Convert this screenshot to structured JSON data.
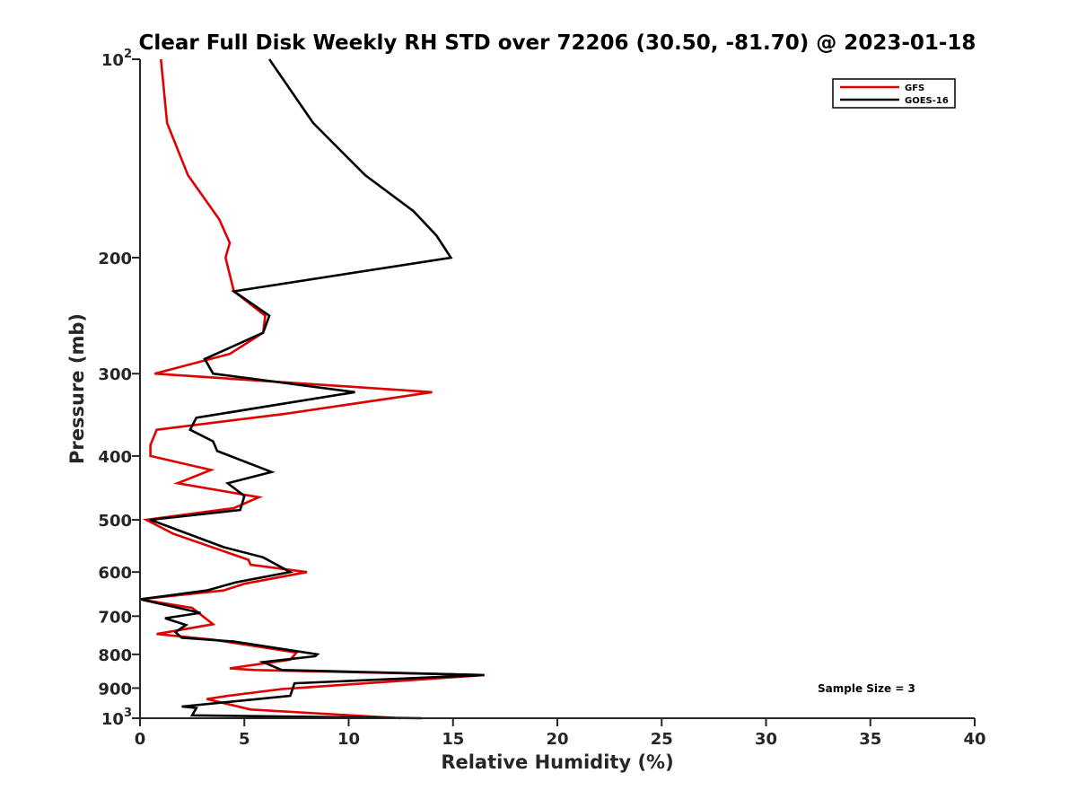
{
  "chart_data": {
    "type": "line",
    "title": "Clear Full Disk Weekly RH STD over 72206 (30.50, -81.70) @ 2023-01-18",
    "xlabel": "Relative Humidity (%)",
    "ylabel": "Pressure (mb)",
    "xlim": [
      0,
      40
    ],
    "ylim": [
      100,
      1000
    ],
    "y_scale": "log",
    "y_reversed": true,
    "grid": false,
    "legend_position": "top-right",
    "x_ticks": [
      {
        "value": 0,
        "label": "0"
      },
      {
        "value": 5,
        "label": "5"
      },
      {
        "value": 10,
        "label": "10"
      },
      {
        "value": 15,
        "label": "15"
      },
      {
        "value": 20,
        "label": "20"
      },
      {
        "value": 25,
        "label": "25"
      },
      {
        "value": 30,
        "label": "30"
      },
      {
        "value": 35,
        "label": "35"
      },
      {
        "value": 40,
        "label": "40"
      }
    ],
    "y_ticks": [
      {
        "value": 100,
        "base": "10",
        "exp": "2"
      },
      {
        "value": 200,
        "base": "200",
        "exp": ""
      },
      {
        "value": 300,
        "base": "300",
        "exp": ""
      },
      {
        "value": 400,
        "base": "400",
        "exp": ""
      },
      {
        "value": 500,
        "base": "500",
        "exp": ""
      },
      {
        "value": 600,
        "base": "600",
        "exp": ""
      },
      {
        "value": 700,
        "base": "700",
        "exp": ""
      },
      {
        "value": 800,
        "base": "800",
        "exp": ""
      },
      {
        "value": 900,
        "base": "900",
        "exp": ""
      },
      {
        "value": 1000,
        "base": "10",
        "exp": "3"
      }
    ],
    "annotation": "Sample Size = 3",
    "series": [
      {
        "name": "GFS",
        "color": "#e00000",
        "points": [
          [
            1.0,
            100
          ],
          [
            1.3,
            125
          ],
          [
            2.3,
            150
          ],
          [
            3.8,
            175
          ],
          [
            4.3,
            190
          ],
          [
            4.1,
            200
          ],
          [
            4.5,
            225
          ],
          [
            6.0,
            245
          ],
          [
            5.9,
            260
          ],
          [
            4.3,
            280
          ],
          [
            0.7,
            300
          ],
          [
            14.0,
            320
          ],
          [
            7.0,
            345
          ],
          [
            0.8,
            365
          ],
          [
            0.5,
            385
          ],
          [
            0.5,
            400
          ],
          [
            3.4,
            420
          ],
          [
            1.8,
            440
          ],
          [
            5.7,
            462
          ],
          [
            4.5,
            480
          ],
          [
            0.3,
            500
          ],
          [
            1.6,
            525
          ],
          [
            5.2,
            575
          ],
          [
            5.3,
            585
          ],
          [
            8.0,
            600
          ],
          [
            5.0,
            625
          ],
          [
            4.0,
            640
          ],
          [
            0.0,
            660
          ],
          [
            2.5,
            680
          ],
          [
            3.5,
            720
          ],
          [
            0.8,
            745
          ],
          [
            3.5,
            760
          ],
          [
            7.5,
            795
          ],
          [
            7.2,
            815
          ],
          [
            4.3,
            840
          ],
          [
            5.5,
            845
          ],
          [
            16.5,
            860
          ],
          [
            7.5,
            900
          ],
          [
            6.8,
            903
          ],
          [
            4.2,
            925
          ],
          [
            3.2,
            935
          ],
          [
            5.3,
            970
          ],
          [
            12.5,
            1000
          ]
        ]
      },
      {
        "name": "GOES-16",
        "color": "#000000",
        "points": [
          [
            6.2,
            100
          ],
          [
            8.3,
            125
          ],
          [
            10.8,
            150
          ],
          [
            13.1,
            170
          ],
          [
            14.2,
            185
          ],
          [
            14.9,
            200
          ],
          [
            4.5,
            225
          ],
          [
            6.2,
            245
          ],
          [
            5.9,
            260
          ],
          [
            3.1,
            285
          ],
          [
            3.5,
            300
          ],
          [
            10.3,
            320
          ],
          [
            2.7,
            350
          ],
          [
            2.4,
            365
          ],
          [
            3.5,
            380
          ],
          [
            3.7,
            393
          ],
          [
            6.3,
            423
          ],
          [
            4.2,
            440
          ],
          [
            5.0,
            460
          ],
          [
            4.8,
            483
          ],
          [
            0.5,
            500
          ],
          [
            4.0,
            550
          ],
          [
            5.9,
            570
          ],
          [
            7.2,
            600
          ],
          [
            4.6,
            622
          ],
          [
            3.2,
            640
          ],
          [
            0.0,
            660
          ],
          [
            2.9,
            692
          ],
          [
            1.2,
            705
          ],
          [
            2.2,
            722
          ],
          [
            1.7,
            740
          ],
          [
            2.0,
            755
          ],
          [
            4.5,
            765
          ],
          [
            8.5,
            800
          ],
          [
            8.4,
            805
          ],
          [
            5.9,
            822
          ],
          [
            6.8,
            845
          ],
          [
            16.5,
            860
          ],
          [
            7.4,
            885
          ],
          [
            7.2,
            925
          ],
          [
            2.0,
            960
          ],
          [
            2.7,
            965
          ],
          [
            2.5,
            990
          ],
          [
            13.5,
            1000
          ]
        ]
      }
    ]
  }
}
